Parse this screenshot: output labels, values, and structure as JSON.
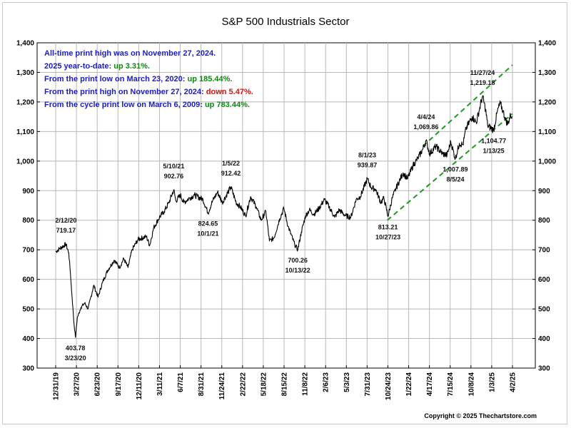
{
  "chart_data": {
    "type": "line",
    "title": "S&P 500 Industrials Sector",
    "ylim": [
      300,
      1400
    ],
    "y_ticks": [
      "300",
      "400",
      "500",
      "600",
      "700",
      "800",
      "900",
      "1,000",
      "1,100",
      "1,200",
      "1,300",
      "1,400"
    ],
    "x_start": "2019-12-31",
    "x_end": "2025-04-02",
    "x_ticks": [
      "12/31/19",
      "3/27/20",
      "6/23/20",
      "9/17/20",
      "12/11/20",
      "3/11/21",
      "6/7/21",
      "8/31/21",
      "11/24/21",
      "2/22/22",
      "5/18/22",
      "8/15/22",
      "11/8/22",
      "2/6/23",
      "5/3/23",
      "7/31/23",
      "10/24/23",
      "1/22/24",
      "4/17/24",
      "7/15/24",
      "10/8/24",
      "1/3/25",
      "4/2/25"
    ],
    "grid": true,
    "info_lines": [
      {
        "text": "All-time print high was on November 27, 2024.",
        "value": "",
        "color": "#1a1ad6",
        "value_color": "#1a1ad6"
      },
      {
        "text": "2025 year-to-date:  ",
        "value": "up 3.31%.",
        "color": "#1a1ad6",
        "value_color": "#0a8a0a"
      },
      {
        "text": "From the print low on March 23, 2020:  ",
        "value": "up 185.44%.",
        "color": "#1a1ad6",
        "value_color": "#0a8a0a"
      },
      {
        "text": "From the print high on November 27, 2024:  ",
        "value": "down 5.47%.",
        "color": "#1a1ad6",
        "value_color": "#e01010"
      },
      {
        "text": "From the cycle print low on March 6, 2009:  ",
        "value": "up 783.44%.",
        "color": "#1a1ad6",
        "value_color": "#0a8a0a"
      }
    ],
    "series": [
      {
        "color": "#000000",
        "points": [
          [
            "2019-12-31",
            693
          ],
          [
            "2020-01-15",
            703
          ],
          [
            "2020-02-12",
            719.17
          ],
          [
            "2020-02-24",
            690
          ],
          [
            "2020-03-02",
            620
          ],
          [
            "2020-03-09",
            540
          ],
          [
            "2020-03-16",
            460
          ],
          [
            "2020-03-23",
            403.78
          ],
          [
            "2020-03-31",
            470
          ],
          [
            "2020-04-15",
            505
          ],
          [
            "2020-05-01",
            520
          ],
          [
            "2020-05-15",
            500
          ],
          [
            "2020-06-08",
            580
          ],
          [
            "2020-06-26",
            540
          ],
          [
            "2020-07-15",
            590
          ],
          [
            "2020-08-05",
            630
          ],
          [
            "2020-09-02",
            665
          ],
          [
            "2020-09-24",
            640
          ],
          [
            "2020-10-12",
            670
          ],
          [
            "2020-10-30",
            640
          ],
          [
            "2020-11-16",
            700
          ],
          [
            "2020-12-11",
            735
          ],
          [
            "2021-01-15",
            745
          ],
          [
            "2021-01-29",
            715
          ],
          [
            "2021-02-15",
            775
          ],
          [
            "2021-03-11",
            810
          ],
          [
            "2021-03-31",
            830
          ],
          [
            "2021-04-20",
            860
          ],
          [
            "2021-05-10",
            902.76
          ],
          [
            "2021-05-19",
            865
          ],
          [
            "2021-06-07",
            885
          ],
          [
            "2021-06-21",
            860
          ],
          [
            "2021-07-15",
            875
          ],
          [
            "2021-08-05",
            885
          ],
          [
            "2021-09-10",
            870
          ],
          [
            "2021-10-01",
            824.65
          ],
          [
            "2021-10-20",
            865
          ],
          [
            "2021-11-10",
            895
          ],
          [
            "2021-11-30",
            860
          ],
          [
            "2022-01-05",
            912.42
          ],
          [
            "2022-01-27",
            860
          ],
          [
            "2022-02-14",
            845
          ],
          [
            "2022-03-08",
            815
          ],
          [
            "2022-03-29",
            880
          ],
          [
            "2022-04-22",
            845
          ],
          [
            "2022-05-12",
            800
          ],
          [
            "2022-06-01",
            830
          ],
          [
            "2022-06-16",
            730
          ],
          [
            "2022-07-05",
            740
          ],
          [
            "2022-07-29",
            805
          ],
          [
            "2022-08-16",
            840
          ],
          [
            "2022-09-02",
            780
          ],
          [
            "2022-09-30",
            718
          ],
          [
            "2022-10-13",
            700.26
          ],
          [
            "2022-10-28",
            760
          ],
          [
            "2022-11-15",
            815
          ],
          [
            "2022-12-01",
            835
          ],
          [
            "2022-12-20",
            820
          ],
          [
            "2023-01-10",
            840
          ],
          [
            "2023-02-02",
            870
          ],
          [
            "2023-02-22",
            845
          ],
          [
            "2023-03-17",
            810
          ],
          [
            "2023-04-05",
            835
          ],
          [
            "2023-05-02",
            815
          ],
          [
            "2023-05-24",
            810
          ],
          [
            "2023-06-15",
            870
          ],
          [
            "2023-07-03",
            880
          ],
          [
            "2023-08-01",
            939.87
          ],
          [
            "2023-08-18",
            910
          ],
          [
            "2023-09-05",
            905
          ],
          [
            "2023-09-27",
            860
          ],
          [
            "2023-10-10",
            875
          ],
          [
            "2023-10-27",
            813.21
          ],
          [
            "2023-11-14",
            875
          ],
          [
            "2023-12-01",
            910
          ],
          [
            "2023-12-29",
            960
          ],
          [
            "2024-01-17",
            940
          ],
          [
            "2024-02-09",
            985
          ],
          [
            "2024-03-01",
            1010
          ],
          [
            "2024-03-21",
            1040
          ],
          [
            "2024-04-04",
            1069.86
          ],
          [
            "2024-04-19",
            1025
          ],
          [
            "2024-05-15",
            1050
          ],
          [
            "2024-06-12",
            1025
          ],
          [
            "2024-07-01",
            1020
          ],
          [
            "2024-07-17",
            1065
          ],
          [
            "2024-08-05",
            1007.89
          ],
          [
            "2024-08-22",
            1060
          ],
          [
            "2024-09-06",
            1055
          ],
          [
            "2024-09-19",
            1110
          ],
          [
            "2024-10-15",
            1150
          ],
          [
            "2024-11-01",
            1130
          ],
          [
            "2024-11-27",
            1219.18
          ],
          [
            "2024-12-10",
            1175
          ],
          [
            "2024-12-19",
            1120
          ],
          [
            "2025-01-13",
            1104.77
          ],
          [
            "2025-01-29",
            1170
          ],
          [
            "2025-02-10",
            1195
          ],
          [
            "2025-02-21",
            1170
          ],
          [
            "2025-03-04",
            1140
          ],
          [
            "2025-03-13",
            1125
          ],
          [
            "2025-03-25",
            1155
          ],
          [
            "2025-03-31",
            1152
          ]
        ]
      }
    ],
    "annotations": [
      {
        "date_label": "2/12/20",
        "value_label": "719.17",
        "x": "2020-02-12",
        "y": 719.17,
        "pos": "above"
      },
      {
        "date_label": "3/23/20",
        "value_label": "403.78",
        "x": "2020-03-23",
        "y": 403.78,
        "pos": "below"
      },
      {
        "date_label": "5/10/21",
        "value_label": "902.76",
        "x": "2021-05-10",
        "y": 902.76,
        "pos": "above"
      },
      {
        "date_label": "10/1/21",
        "value_label": "824.65",
        "x": "2021-10-01",
        "y": 824.65,
        "pos": "below"
      },
      {
        "date_label": "1/5/22",
        "value_label": "912.42",
        "x": "2022-01-05",
        "y": 912.42,
        "pos": "above"
      },
      {
        "date_label": "10/13/22",
        "value_label": "700.26",
        "x": "2022-10-13",
        "y": 700.26,
        "pos": "below"
      },
      {
        "date_label": "8/1/23",
        "value_label": "939.87",
        "x": "2023-08-01",
        "y": 939.87,
        "pos": "above"
      },
      {
        "date_label": "10/27/23",
        "value_label": "813.21",
        "x": "2023-10-27",
        "y": 813.21,
        "pos": "below"
      },
      {
        "date_label": "4/4/24",
        "value_label": "1,069.86",
        "x": "2024-04-04",
        "y": 1069.86,
        "pos": "above"
      },
      {
        "date_label": "8/5/24",
        "value_label": "1,007.89",
        "x": "2024-08-05",
        "y": 1007.89,
        "pos": "below"
      },
      {
        "date_label": "11/27/24",
        "value_label": "1,219.18",
        "x": "2024-11-27",
        "y": 1219.18,
        "pos": "above"
      },
      {
        "date_label": "1/13/25",
        "value_label": "1,104.77",
        "x": "2025-01-13",
        "y": 1104.77,
        "pos": "below"
      }
    ],
    "trend_lines": [
      {
        "color": "#1f9a1f",
        "from": [
          "2023-10-24",
          800
        ],
        "to": [
          "2025-04-02",
          1160
        ]
      },
      {
        "color": "#1f9a1f",
        "from": [
          "2024-03-21",
          1050
        ],
        "to": [
          "2025-04-02",
          1325
        ]
      }
    ],
    "copyright": "Copyright © 2025 Thechartstore.com"
  }
}
